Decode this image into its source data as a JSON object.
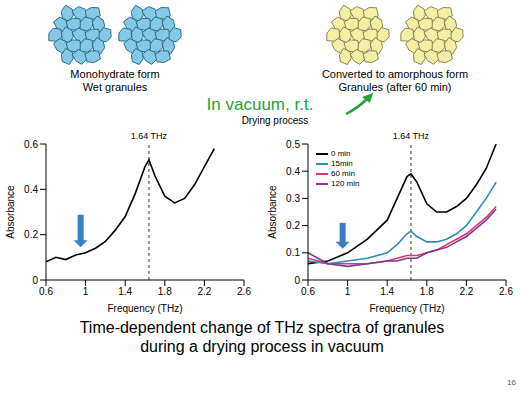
{
  "granules": {
    "before": {
      "lines": [
        "Monohydrate form",
        "Wet granules"
      ],
      "color": "#86c9e6"
    },
    "after": {
      "lines": [
        "Converted to amorphous form",
        "Granules (after 60 min)"
      ],
      "color": "#f3efa6"
    }
  },
  "process": {
    "title": "In vacuum, r.t.",
    "subtitle": "Drying process",
    "color": "#22a33a"
  },
  "caption": "Time-dependent change of THz spectra of granules during a drying process in vacuum",
  "page": 16,
  "chart_data": [
    {
      "type": "line",
      "x_label": "Frequency (THz)",
      "y_label": "Absorbance",
      "x": [
        0.6,
        0.7,
        0.8,
        0.9,
        1.0,
        1.1,
        1.2,
        1.3,
        1.4,
        1.5,
        1.6,
        1.64,
        1.7,
        1.8,
        1.9,
        2.0,
        2.1,
        2.2,
        2.3
      ],
      "values": [
        0.08,
        0.1,
        0.09,
        0.11,
        0.12,
        0.14,
        0.17,
        0.22,
        0.28,
        0.38,
        0.5,
        0.53,
        0.46,
        0.37,
        0.34,
        0.36,
        0.42,
        0.5,
        0.58
      ],
      "color": "#000000",
      "xlim": [
        0.6,
        2.6
      ],
      "xticks": [
        0.6,
        1,
        1.4,
        1.8,
        2.2,
        2.6
      ],
      "ylim": [
        0,
        0.6
      ],
      "yticks": [
        0,
        0.2,
        0.4,
        0.6
      ],
      "annotations": [
        {
          "x": 1.64,
          "label": "1.64 THz"
        }
      ]
    },
    {
      "type": "line",
      "x_label": "Frequency (THz)",
      "y_label": "Absorbance",
      "x": [
        0.6,
        0.8,
        1.0,
        1.2,
        1.4,
        1.5,
        1.6,
        1.64,
        1.7,
        1.8,
        1.9,
        2.0,
        2.1,
        2.2,
        2.3,
        2.4,
        2.5
      ],
      "series": [
        {
          "name": "0 min",
          "color": "#000000",
          "values": [
            0.06,
            0.07,
            0.1,
            0.15,
            0.22,
            0.3,
            0.38,
            0.39,
            0.36,
            0.28,
            0.25,
            0.25,
            0.27,
            0.3,
            0.35,
            0.41,
            0.5
          ]
        },
        {
          "name": "15min",
          "color": "#2e8bc0",
          "values": [
            0.07,
            0.06,
            0.07,
            0.08,
            0.1,
            0.13,
            0.17,
            0.18,
            0.16,
            0.14,
            0.14,
            0.15,
            0.17,
            0.2,
            0.25,
            0.3,
            0.36
          ]
        },
        {
          "name": "60 min",
          "color": "#e0307a",
          "values": [
            0.08,
            0.06,
            0.06,
            0.06,
            0.07,
            0.08,
            0.09,
            0.09,
            0.09,
            0.1,
            0.11,
            0.13,
            0.15,
            0.17,
            0.2,
            0.23,
            0.27
          ]
        },
        {
          "name": "120 min",
          "color": "#7a3c8c",
          "values": [
            0.1,
            0.06,
            0.05,
            0.06,
            0.07,
            0.07,
            0.08,
            0.08,
            0.08,
            0.1,
            0.11,
            0.12,
            0.14,
            0.16,
            0.19,
            0.22,
            0.26
          ]
        }
      ],
      "xlim": [
        0.6,
        2.6
      ],
      "xticks": [
        0.6,
        1,
        1.4,
        1.8,
        2.2,
        2.6
      ],
      "ylim": [
        0,
        0.5
      ],
      "yticks": [
        0,
        0.1,
        0.2,
        0.3,
        0.4,
        0.5
      ],
      "annotations": [
        {
          "x": 1.64,
          "label": "1.64 THz"
        }
      ],
      "legend": "upper left"
    }
  ]
}
